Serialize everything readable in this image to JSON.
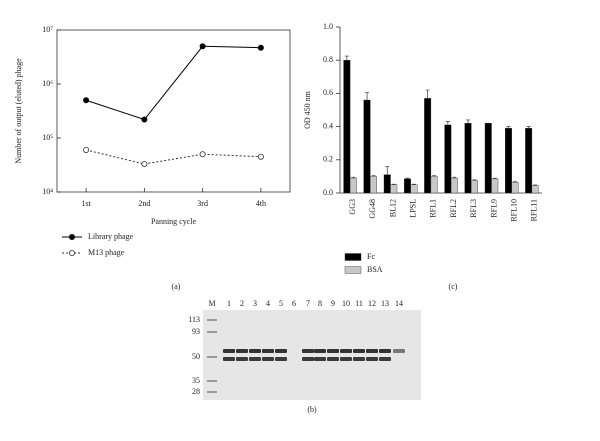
{
  "chart_data": [
    {
      "type": "line",
      "log_y": true,
      "ylabel": "Number of output (eluted) phage",
      "xlabel": "Panning cycle",
      "panel": "(a)",
      "categories": [
        "1st",
        "2nd",
        "3rd",
        "4th"
      ],
      "series": [
        {
          "name": "Library phage",
          "color": "#000000",
          "fill": "#000000",
          "dash": false,
          "values": [
            500000,
            220000,
            5000000,
            4700000
          ]
        },
        {
          "name": "M13 phage",
          "color": "#333333",
          "fill": "#ffffff",
          "dash": true,
          "values": [
            60000,
            33000,
            50000,
            45000
          ]
        }
      ],
      "ylim": [
        10000,
        10000000
      ],
      "yticks": [
        {
          "value": 10000,
          "label": "10⁴"
        },
        {
          "value": 100000,
          "label": "10⁵"
        },
        {
          "value": 1000000,
          "label": "10⁶"
        },
        {
          "value": 10000000,
          "label": "10⁷"
        }
      ]
    },
    {
      "type": "bar",
      "ylabel": "OD 450 nm",
      "panel": "(c)",
      "categories": [
        "GG3",
        "GG48",
        "BL12",
        "LPSL",
        "RFL1",
        "RFL2",
        "RFL3",
        "RFL9",
        "RFL10",
        "RFL11"
      ],
      "series": [
        {
          "name": "Fc",
          "color": "#000000",
          "values": [
            0.8,
            0.56,
            0.11,
            0.085,
            0.57,
            0.41,
            0.42,
            0.42,
            0.39,
            0.39
          ],
          "errors": [
            0.025,
            0.045,
            0.05,
            0.005,
            0.05,
            0.02,
            0.02,
            0,
            0.01,
            0.01
          ]
        },
        {
          "name": "BSA",
          "color": "#c8c8c8",
          "values": [
            0.09,
            0.1,
            0.05,
            0.05,
            0.1,
            0.09,
            0.075,
            0.085,
            0.065,
            0.045
          ],
          "errors": [
            0.005,
            0.005,
            0.003,
            0.003,
            0.005,
            0.005,
            0.004,
            0.004,
            0.004,
            0.003
          ]
        }
      ],
      "ylim": [
        0,
        1
      ],
      "yticks": [
        {
          "value": 0,
          "label": "0.0"
        },
        0.2,
        0.4,
        0.6,
        0.8,
        {
          "value": 1,
          "label": "1.0"
        }
      ]
    }
  ],
  "gel": {
    "panel": "(b)",
    "lanes": [
      "M",
      "1",
      "2",
      "3",
      "4",
      "5",
      "6",
      "7",
      "8",
      "9",
      "10",
      "11",
      "12",
      "13",
      "14"
    ],
    "markers": [
      "113",
      "93",
      "50",
      "35",
      "28"
    ]
  }
}
